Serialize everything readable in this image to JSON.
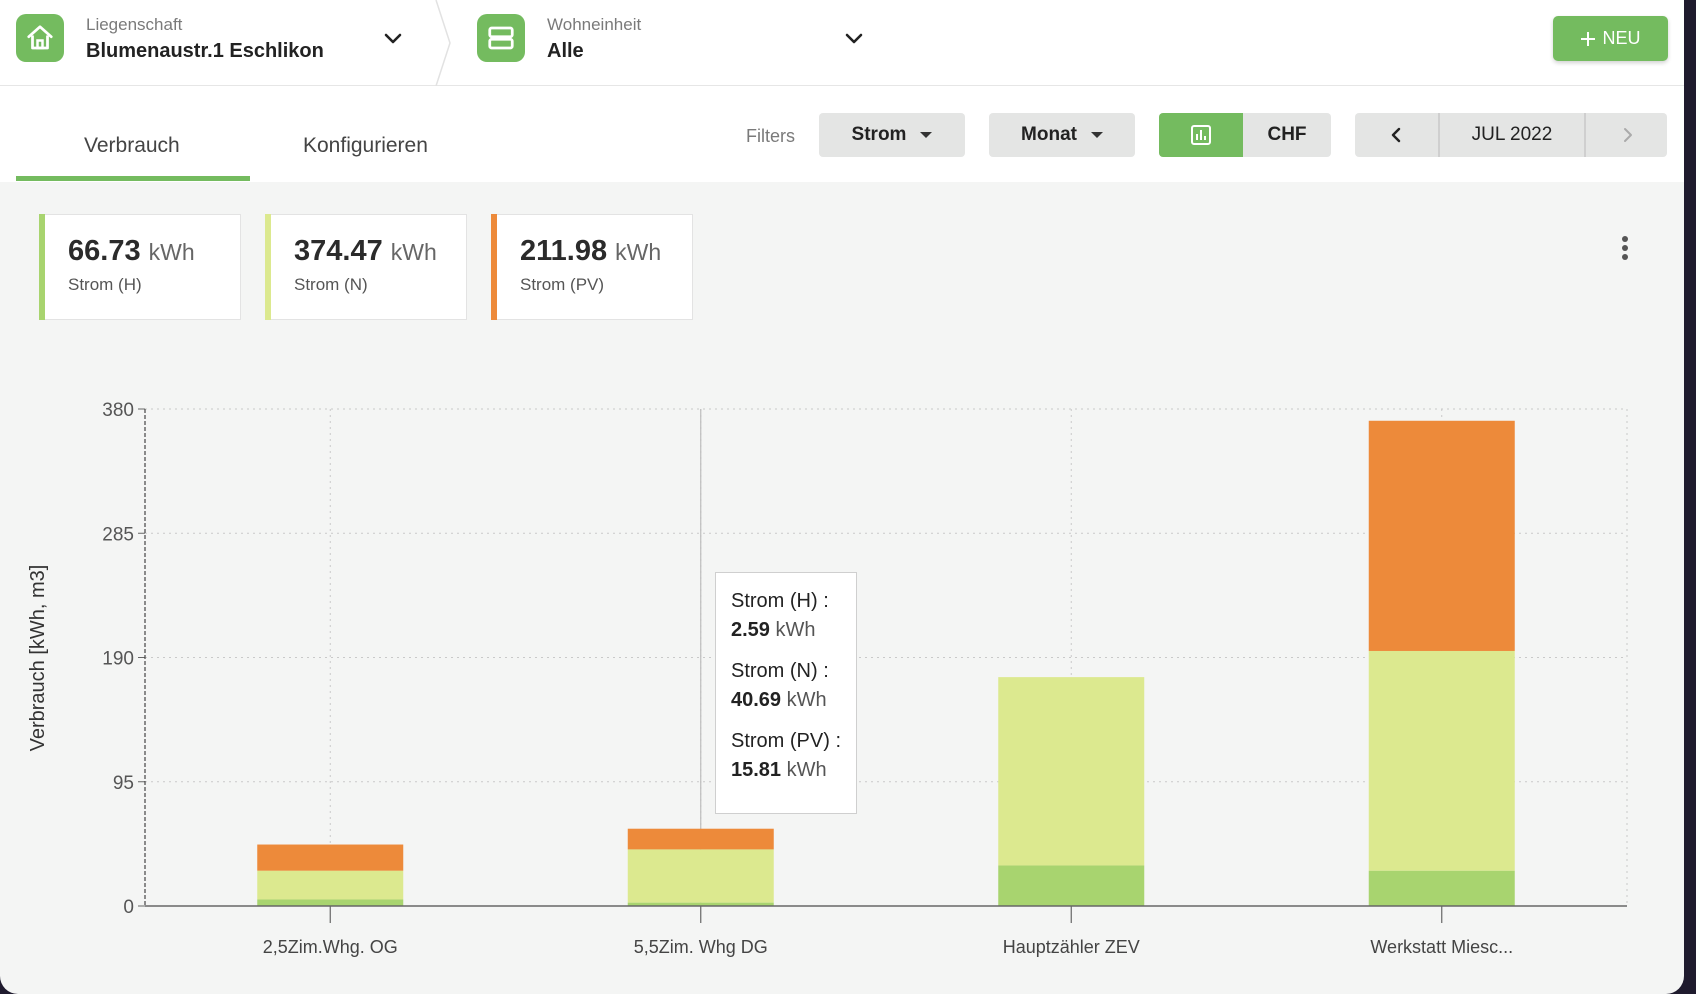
{
  "header": {
    "property": {
      "label": "Liegenschaft",
      "value": "Blumenaustr.1 Eschlikon",
      "icon": "home-icon"
    },
    "unit": {
      "label": "Wohneinheit",
      "value": "Alle",
      "icon": "units-icon"
    },
    "new_button": "NEU"
  },
  "tabs": [
    {
      "label": "Verbrauch",
      "active": true
    },
    {
      "label": "Konfigurieren",
      "active": false
    }
  ],
  "toolbar": {
    "filters_label": "Filters",
    "medium": "Strom",
    "period": "Monat",
    "currency": "CHF",
    "date": "JUL 2022"
  },
  "summary": [
    {
      "value": "66.73",
      "unit": "kWh",
      "name": "Strom (H)",
      "color": "#a8d46f"
    },
    {
      "value": "374.47",
      "unit": "kWh",
      "name": "Strom (N)",
      "color": "#dce98f"
    },
    {
      "value": "211.98",
      "unit": "kWh",
      "name": "Strom (PV)",
      "color": "#ed8a3a"
    }
  ],
  "tooltip": [
    {
      "label": "Strom (H) :",
      "value": "2.59",
      "unit": "kWh"
    },
    {
      "label": "Strom (N) :",
      "value": "40.69",
      "unit": "kWh"
    },
    {
      "label": "Strom (PV) :",
      "value": "15.81",
      "unit": "kWh"
    }
  ],
  "chart_data": {
    "type": "bar",
    "stacked": true,
    "ylabel": "Verbrauch [kWh, m3]",
    "ylim": [
      0,
      380
    ],
    "yticks": [
      0,
      95,
      190,
      285,
      380
    ],
    "categories": [
      "2,5Zim.Whg. OG",
      "5,5Zim. Whg DG",
      "Hauptzähler ZEV",
      "Werkstatt Miesc..."
    ],
    "series": [
      {
        "name": "Strom (H)",
        "color": "#a8d46f",
        "values": [
          5,
          2.59,
          31,
          27
        ]
      },
      {
        "name": "Strom (N)",
        "color": "#dce98f",
        "values": [
          22,
          40.69,
          144,
          168
        ]
      },
      {
        "name": "Strom (PV)",
        "color": "#ed8a3a",
        "values": [
          20,
          15.81,
          0,
          176
        ]
      }
    ],
    "grid": true
  }
}
